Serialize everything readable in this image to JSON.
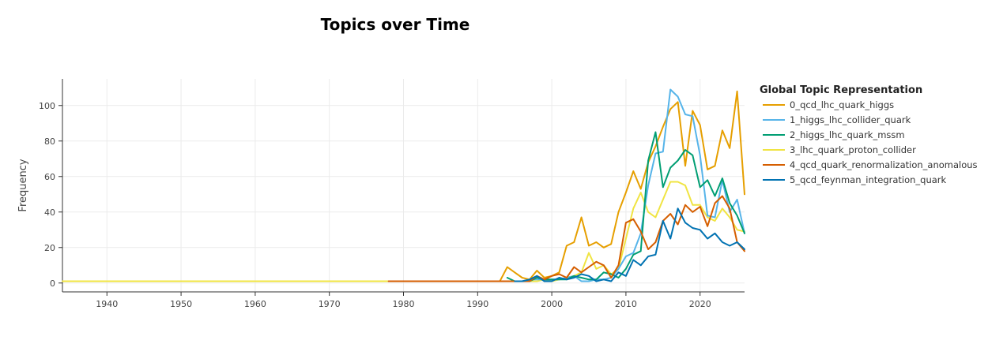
{
  "chart_data": {
    "type": "line",
    "title": "Topics over Time",
    "xlabel": "",
    "ylabel": "Frequency",
    "xlim": [
      1934,
      2026
    ],
    "ylim": [
      -5,
      115
    ],
    "xticks": [
      1940,
      1950,
      1960,
      1970,
      1980,
      1990,
      2000,
      2010,
      2020
    ],
    "yticks": [
      0,
      20,
      40,
      60,
      80,
      100
    ],
    "grid": true,
    "legend": {
      "title": "Global Topic Representation",
      "position": "right"
    },
    "series": [
      {
        "name": "3_lhc_quark_proton_collider",
        "color": "#f0e442",
        "x": [
          1934,
          1978,
          1995,
          1997,
          1998,
          1999,
          2000,
          2001,
          2002,
          2003,
          2004,
          2005,
          2006,
          2007,
          2008,
          2009,
          2010,
          2011,
          2012,
          2013,
          2014,
          2015,
          2016,
          2017,
          2018,
          2019,
          2020,
          2021,
          2022,
          2023,
          2024,
          2025,
          2026
        ],
        "y": [
          1,
          1,
          1,
          1,
          1,
          2,
          1,
          2,
          3,
          4,
          6,
          17,
          8,
          10,
          5,
          8,
          25,
          42,
          51,
          40,
          37,
          47,
          57,
          57,
          55,
          44,
          44,
          37,
          35,
          42,
          37,
          30,
          29
        ]
      },
      {
        "name": "0_qcd_lhc_quark_higgs",
        "color": "#e69f00",
        "x": [
          1978,
          1993,
          1994,
          1995,
          1996,
          1997,
          1998,
          1999,
          2000,
          2001,
          2002,
          2003,
          2004,
          2005,
          2006,
          2007,
          2008,
          2009,
          2010,
          2011,
          2012,
          2013,
          2014,
          2015,
          2016,
          2017,
          2018,
          2019,
          2020,
          2021,
          2022,
          2023,
          2024,
          2025,
          2026
        ],
        "y": [
          1,
          1,
          9,
          6,
          3,
          2,
          7,
          3,
          4,
          6,
          21,
          23,
          37,
          21,
          23,
          20,
          22,
          40,
          51,
          63,
          53,
          68,
          77,
          88,
          98,
          102,
          66,
          97,
          89,
          64,
          66,
          86,
          76,
          108,
          50
        ]
      },
      {
        "name": "1_higgs_lhc_collider_quark",
        "color": "#56b4e9",
        "x": [
          1996,
          1997,
          1998,
          1999,
          2000,
          2001,
          2002,
          2003,
          2004,
          2005,
          2006,
          2007,
          2008,
          2009,
          2010,
          2011,
          2012,
          2013,
          2014,
          2015,
          2016,
          2017,
          2018,
          2019,
          2020,
          2021,
          2022,
          2023,
          2024,
          2025,
          2026
        ],
        "y": [
          1,
          2,
          2,
          2,
          2,
          2,
          3,
          4,
          1,
          1,
          2,
          2,
          3,
          8,
          15,
          17,
          28,
          55,
          73,
          74,
          109,
          105,
          95,
          94,
          72,
          38,
          37,
          58,
          40,
          47,
          28
        ]
      },
      {
        "name": "2_higgs_lhc_quark_mssm",
        "color": "#009e73",
        "x": [
          1994,
          1995,
          1996,
          1997,
          1998,
          1999,
          2000,
          2001,
          2002,
          2003,
          2004,
          2005,
          2006,
          2007,
          2008,
          2009,
          2010,
          2011,
          2012,
          2013,
          2014,
          2015,
          2016,
          2017,
          2018,
          2019,
          2020,
          2021,
          2022,
          2023,
          2024,
          2025,
          2026
        ],
        "y": [
          3,
          1,
          1,
          1,
          3,
          2,
          2,
          2,
          2,
          4,
          3,
          2,
          2,
          6,
          5,
          3,
          8,
          16,
          18,
          69,
          85,
          54,
          65,
          69,
          75,
          72,
          54,
          58,
          49,
          59,
          45,
          38,
          28
        ]
      },
      {
        "name": "4_qcd_quark_renormalization_anomalous",
        "color": "#d55e00",
        "x": [
          1978,
          1997,
          1998,
          1999,
          2000,
          2001,
          2002,
          2003,
          2004,
          2005,
          2006,
          2007,
          2008,
          2009,
          2010,
          2011,
          2012,
          2013,
          2014,
          2015,
          2016,
          2017,
          2018,
          2019,
          2020,
          2021,
          2022,
          2023,
          2024,
          2025,
          2026
        ],
        "y": [
          1,
          1,
          4,
          2,
          4,
          5,
          3,
          9,
          6,
          9,
          12,
          10,
          3,
          10,
          34,
          36,
          29,
          19,
          23,
          35,
          39,
          33,
          44,
          40,
          43,
          32,
          45,
          49,
          42,
          23,
          18
        ]
      },
      {
        "name": "5_qcd_feynman_integration_quark",
        "color": "#0072b2",
        "x": [
          1995,
          1996,
          1997,
          1998,
          1999,
          2000,
          2001,
          2002,
          2003,
          2004,
          2005,
          2006,
          2007,
          2008,
          2009,
          2010,
          2011,
          2012,
          2013,
          2014,
          2015,
          2016,
          2017,
          2018,
          2019,
          2020,
          2021,
          2022,
          2023,
          2024,
          2025,
          2026
        ],
        "y": [
          1,
          1,
          2,
          4,
          1,
          1,
          3,
          2,
          3,
          5,
          4,
          1,
          2,
          1,
          6,
          4,
          13,
          10,
          15,
          16,
          35,
          25,
          42,
          34,
          31,
          30,
          25,
          28,
          23,
          21,
          23,
          19
        ]
      }
    ],
    "legend_order": [
      "0_qcd_lhc_quark_higgs",
      "1_higgs_lhc_collider_quark",
      "2_higgs_lhc_quark_mssm",
      "3_lhc_quark_proton_collider",
      "4_qcd_quark_renormalization_anomalous",
      "5_qcd_feynman_integration_quark"
    ]
  }
}
